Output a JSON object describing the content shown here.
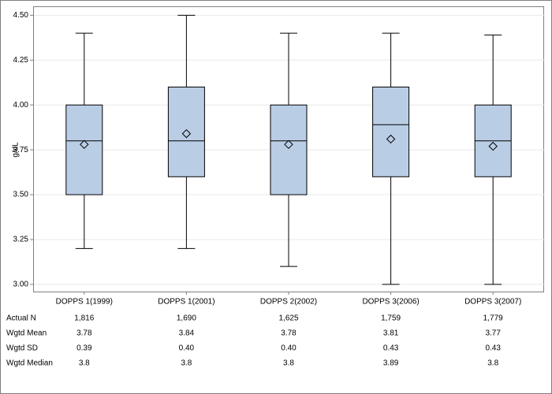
{
  "chart_data": {
    "type": "box",
    "y_label": "g/dL",
    "categories": [
      "DOPPS 1(1999)",
      "DOPPS 1(2001)",
      "DOPPS 2(2002)",
      "DOPPS 3(2006)",
      "DOPPS 3(2007)"
    ],
    "whislo": [
      3.2,
      3.2,
      3.1,
      3.0,
      3.0
    ],
    "q1": [
      3.5,
      3.6,
      3.5,
      3.6,
      3.6
    ],
    "median": [
      3.8,
      3.8,
      3.8,
      3.89,
      3.8
    ],
    "q3": [
      4.0,
      4.1,
      4.0,
      4.1,
      4.0
    ],
    "whishi": [
      4.4,
      4.5,
      4.4,
      4.4,
      4.39
    ],
    "mean": [
      3.78,
      3.84,
      3.78,
      3.81,
      3.77
    ],
    "color": "#b9cde5",
    "ylim": [
      2.96,
      4.55
    ],
    "yticks": [
      {
        "value": 3.0,
        "label": "3.00"
      },
      {
        "value": 3.25,
        "label": "3.25"
      },
      {
        "value": 3.5,
        "label": "3.50"
      },
      {
        "value": 3.75,
        "label": "3.75"
      },
      {
        "value": 4.0,
        "label": "4.00"
      },
      {
        "value": 4.25,
        "label": "4.25"
      },
      {
        "value": 4.5,
        "label": "4.50"
      }
    ],
    "grid": true,
    "table": {
      "rows": [
        {
          "label": "Actual N",
          "values": [
            "1,816",
            "1,690",
            "1,625",
            "1,759",
            "1,779"
          ]
        },
        {
          "label": "Wgtd Mean",
          "values": [
            "3.78",
            "3.84",
            "3.78",
            "3.81",
            "3.77"
          ]
        },
        {
          "label": "Wgtd SD",
          "values": [
            "0.39",
            "0.40",
            "0.40",
            "0.43",
            "0.43"
          ]
        },
        {
          "label": "Wgtd Median",
          "values": [
            "3.8",
            "3.8",
            "3.8",
            "3.89",
            "3.8"
          ]
        }
      ]
    }
  }
}
